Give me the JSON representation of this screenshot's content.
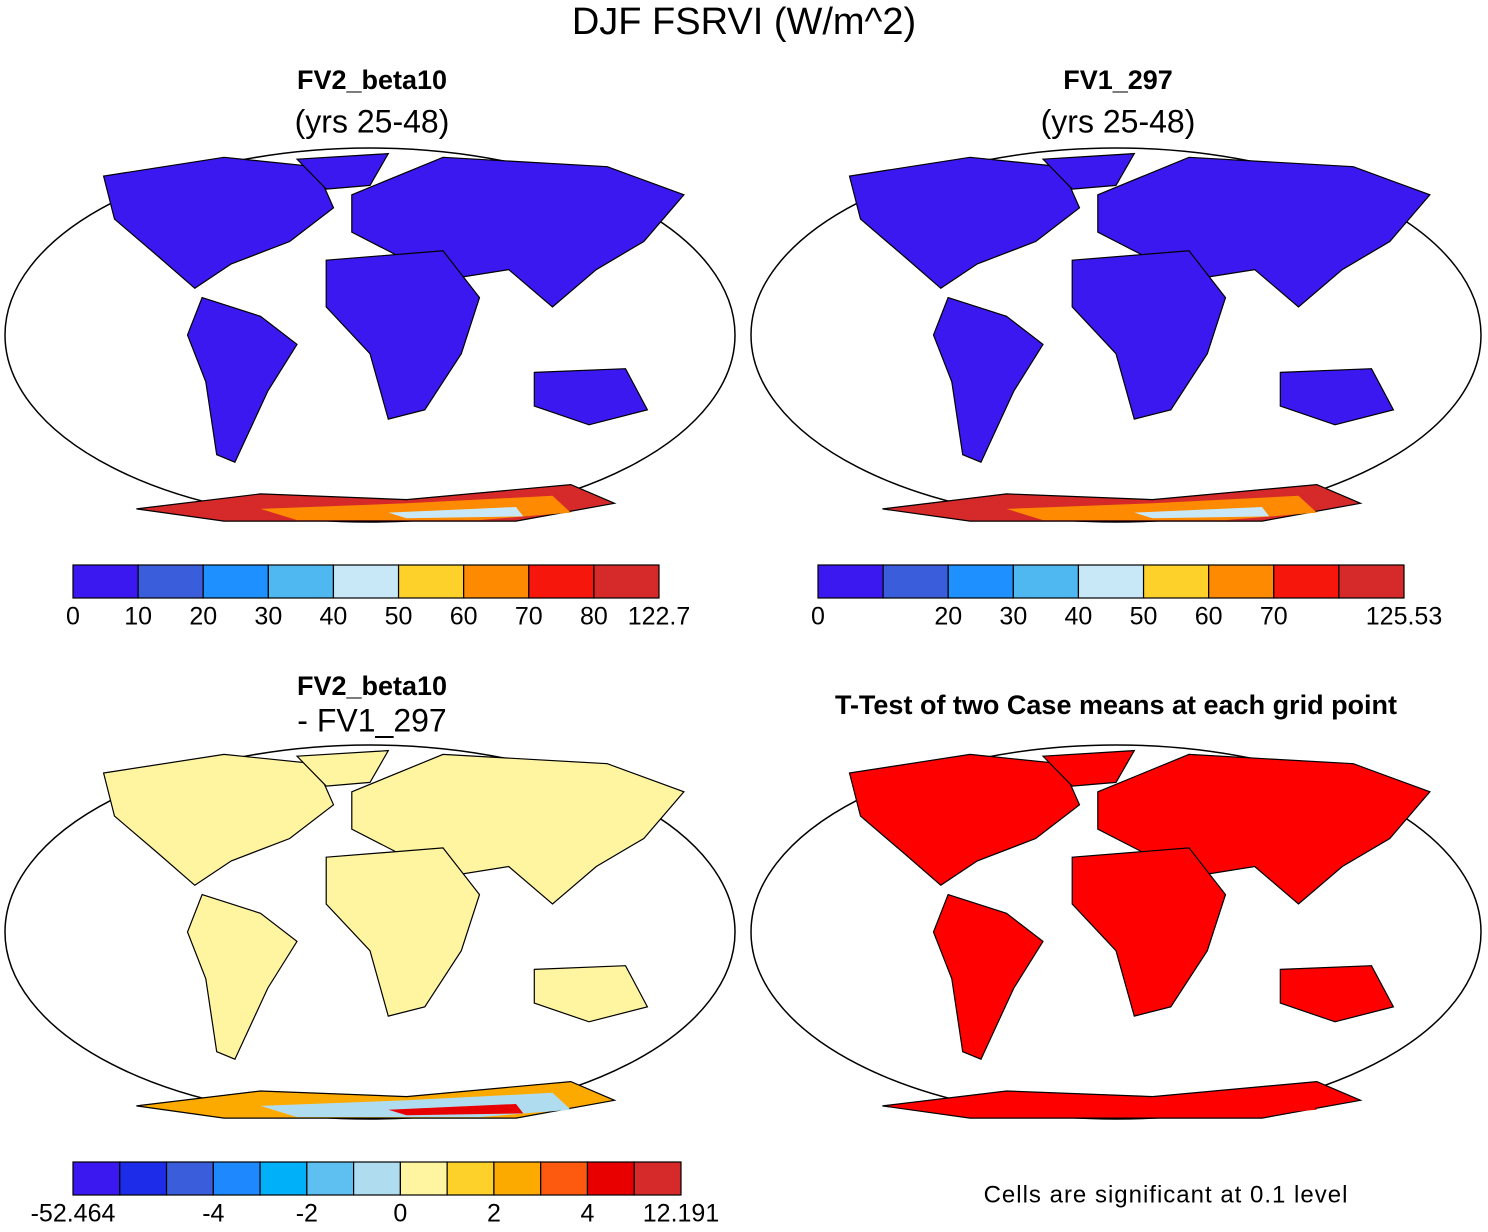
{
  "title": "DJF FSRVI (W/m^2)",
  "panels": [
    {
      "title": "FV2_beta10",
      "subtitle": "(yrs 25-48)",
      "colorbar": {
        "colors": [
          "#3c18f0",
          "#3a5ddc",
          "#1e90ff",
          "#4fb8f0",
          "#c8e8f8",
          "#fdd02a",
          "#fd8a00",
          "#f7160c",
          "#d62a2a"
        ],
        "ticks": [
          0,
          10,
          20,
          30,
          40,
          50,
          60,
          70,
          80,
          122.7
        ]
      }
    },
    {
      "title": "FV1_297",
      "subtitle": "(yrs 25-48)",
      "colorbar": {
        "colors": [
          "#3c18f0",
          "#3a5ddc",
          "#1e90ff",
          "#4fb8f0",
          "#c8e8f8",
          "#fdd02a",
          "#fd8a00",
          "#f7160c",
          "#d62a2a"
        ],
        "ticks": [
          0,
          null,
          20,
          30,
          40,
          50,
          60,
          70,
          null,
          125.53
        ]
      }
    },
    {
      "title": "FV2_beta10",
      "subtitle": "- FV1_297",
      "colorbar": {
        "colors": [
          "#3c18f0",
          "#1c2ce8",
          "#3a5ddc",
          "#1e88ff",
          "#00b0f8",
          "#5ec0f0",
          "#b0dcf0",
          "#fff5a0",
          "#fdd02a",
          "#fdaa00",
          "#fd5a10",
          "#e80000",
          "#d62a2a"
        ],
        "ticks": [
          -52.464,
          null,
          null,
          -4,
          null,
          -2,
          null,
          0,
          null,
          2,
          null,
          4,
          null,
          12.191
        ]
      }
    },
    {
      "title": "T-Test of two Case means at each grid point",
      "color": "#ff0000",
      "note": "Cells are significant at 0.1 level"
    }
  ]
}
